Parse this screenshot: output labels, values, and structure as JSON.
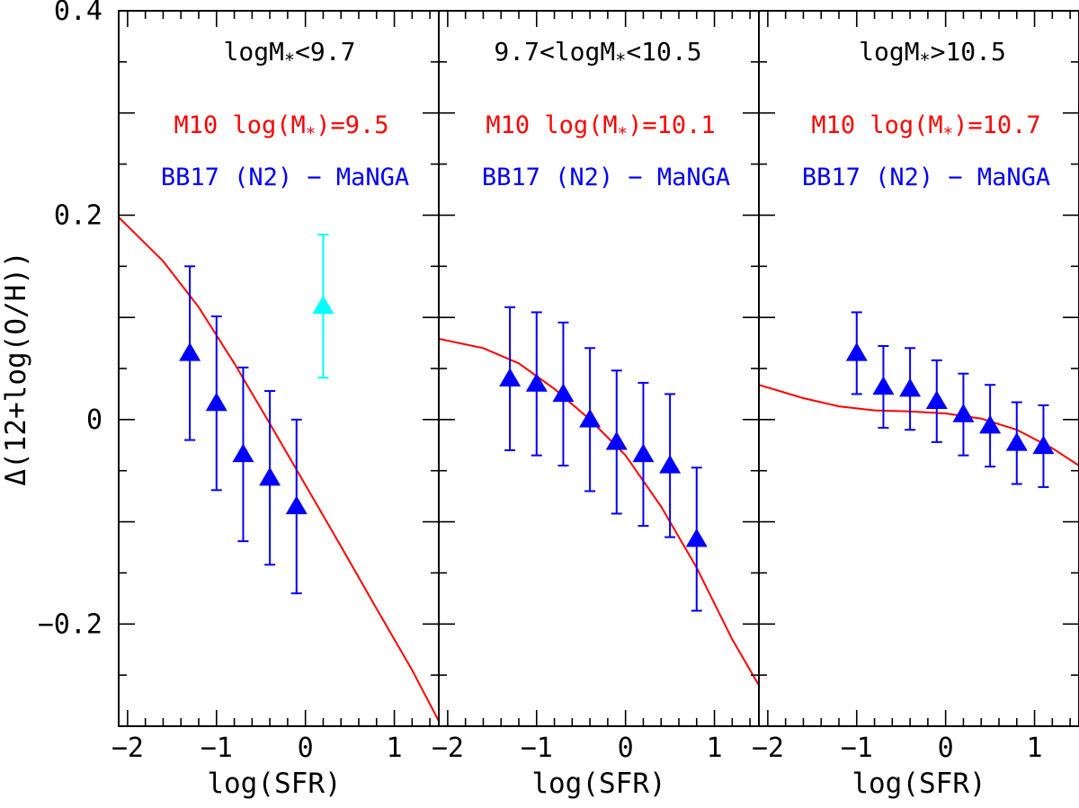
{
  "colors": {
    "model": "#ff0000",
    "data": "#0000ff",
    "outlier": "#00ffff",
    "axes": "#000000"
  },
  "labels": {
    "ylabel": "Δ(12+log(O/H))",
    "xlabel": "log(SFR)",
    "data_legend": "BB17 (N2) − MaNGA",
    "model_prefix": "M10 log(M",
    "model_suffix": ")=",
    "mass_symbol": "M",
    "star": "*",
    "titles": {
      "p1": {
        "pre": "log",
        "post": "<9.7"
      },
      "p2": {
        "pre": "9.7<log",
        "post": "<10.5"
      },
      "p3": {
        "pre": "log",
        "post": ">10.5"
      }
    },
    "model_values": {
      "p1": "9.5",
      "p2": "10.1",
      "p3": "10.7"
    }
  },
  "chart_data": {
    "type": "scatter",
    "xlim": [
      -2.1,
      1.5
    ],
    "ylim": [
      -0.3,
      0.4
    ],
    "xticks": [
      -2,
      -1,
      0,
      1
    ],
    "xtick_labels": [
      "−2",
      "−1",
      "0",
      "1"
    ],
    "yticks": [
      -0.2,
      0,
      0.2,
      0.4
    ],
    "ytick_labels": [
      "−0.2",
      "0",
      "0.2",
      "0.4"
    ],
    "panels": [
      {
        "title": "logM*<9.7",
        "model_label": "M10 log(M*)=9.5",
        "series_label": "BB17 (N2) - MaNGA",
        "model_curve": {
          "x": [
            -2.1,
            -1.6,
            -1.2,
            -0.8,
            -0.4,
            0.0,
            0.4,
            0.8,
            1.2,
            1.5
          ],
          "y": [
            0.198,
            0.155,
            0.11,
            0.055,
            -0.004,
            -0.064,
            -0.124,
            -0.185,
            -0.245,
            -0.295
          ]
        },
        "points": [
          {
            "x": -1.3,
            "y": 0.065,
            "err": 0.085
          },
          {
            "x": -1.0,
            "y": 0.016,
            "err": 0.085
          },
          {
            "x": -0.7,
            "y": -0.034,
            "err": 0.085
          },
          {
            "x": -0.4,
            "y": -0.057,
            "err": 0.085
          },
          {
            "x": -0.1,
            "y": -0.085,
            "err": 0.085
          }
        ],
        "outliers": [
          {
            "x": 0.2,
            "y": 0.111,
            "err": 0.07
          }
        ]
      },
      {
        "title": "9.7<logM*<10.5",
        "model_label": "M10 log(M*)=10.1",
        "series_label": "BB17 (N2) - MaNGA",
        "model_curve": {
          "x": [
            -2.1,
            -1.6,
            -1.2,
            -0.8,
            -0.4,
            0.0,
            0.4,
            0.8,
            1.2,
            1.5
          ],
          "y": [
            0.079,
            0.07,
            0.055,
            0.03,
            0.0,
            -0.035,
            -0.085,
            -0.145,
            -0.215,
            -0.26
          ]
        },
        "points": [
          {
            "x": -1.3,
            "y": 0.04,
            "err": 0.07
          },
          {
            "x": -1.0,
            "y": 0.035,
            "err": 0.07
          },
          {
            "x": -0.7,
            "y": 0.025,
            "err": 0.07
          },
          {
            "x": -0.4,
            "y": 0.0,
            "err": 0.07
          },
          {
            "x": -0.1,
            "y": -0.022,
            "err": 0.07
          },
          {
            "x": 0.2,
            "y": -0.034,
            "err": 0.07
          },
          {
            "x": 0.5,
            "y": -0.045,
            "err": 0.07
          },
          {
            "x": 0.8,
            "y": -0.117,
            "err": 0.07
          }
        ],
        "outliers": []
      },
      {
        "title": "logM*>10.5",
        "model_label": "M10 log(M*)=10.7",
        "series_label": "BB17 (N2) - MaNGA",
        "model_curve": {
          "x": [
            -2.1,
            -1.6,
            -1.2,
            -0.8,
            -0.4,
            0.0,
            0.4,
            0.8,
            1.2,
            1.5
          ],
          "y": [
            0.034,
            0.021,
            0.013,
            0.009,
            0.008,
            0.006,
            0.001,
            -0.01,
            -0.028,
            -0.045
          ]
        },
        "points": [
          {
            "x": -1.0,
            "y": 0.065,
            "err": 0.04
          },
          {
            "x": -0.7,
            "y": 0.032,
            "err": 0.04
          },
          {
            "x": -0.4,
            "y": 0.03,
            "err": 0.04
          },
          {
            "x": -0.1,
            "y": 0.018,
            "err": 0.04
          },
          {
            "x": 0.2,
            "y": 0.005,
            "err": 0.04
          },
          {
            "x": 0.5,
            "y": -0.006,
            "err": 0.04
          },
          {
            "x": 0.8,
            "y": -0.023,
            "err": 0.04
          },
          {
            "x": 1.1,
            "y": -0.026,
            "err": 0.04
          }
        ],
        "outliers": []
      }
    ]
  }
}
